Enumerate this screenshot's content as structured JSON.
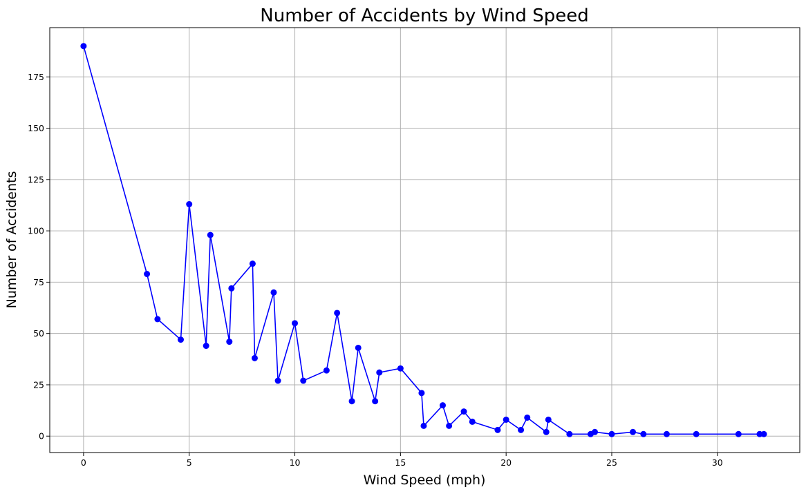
{
  "chart_data": {
    "type": "line",
    "title": "Number of Accidents by Wind Speed",
    "xlabel": "Wind Speed (mph)",
    "ylabel": "Number of Accidents",
    "xlim": [
      -1.6,
      33.9
    ],
    "ylim": [
      -8,
      199
    ],
    "xticks": [
      0,
      5,
      10,
      15,
      20,
      25,
      30
    ],
    "yticks": [
      0,
      25,
      50,
      75,
      100,
      125,
      150,
      175
    ],
    "grid": true,
    "color": "#0000ff",
    "series": [
      {
        "x": [
          0,
          3,
          3.5,
          4.6,
          5,
          5.8,
          6,
          6.9,
          7,
          8,
          8.1,
          9,
          9.2,
          10,
          10.4,
          11.5,
          12,
          12.7,
          13,
          13.8,
          14,
          15,
          16,
          16.1,
          17,
          17.3,
          18,
          18.4,
          19.6,
          20,
          20.7,
          21,
          21.9,
          22,
          23,
          24,
          24.2,
          25,
          26,
          26.5,
          27.6,
          29,
          31,
          32,
          32.2
        ],
        "y": [
          190,
          79,
          57,
          47,
          113,
          44,
          98,
          46,
          72,
          84,
          38,
          70,
          27,
          55,
          27,
          32,
          60,
          17,
          43,
          17,
          31,
          33,
          21,
          5,
          15,
          5,
          12,
          7,
          3,
          8,
          3,
          9,
          2,
          8,
          1,
          1,
          2,
          1,
          2,
          1,
          1,
          1,
          1,
          1,
          1
        ]
      }
    ]
  }
}
